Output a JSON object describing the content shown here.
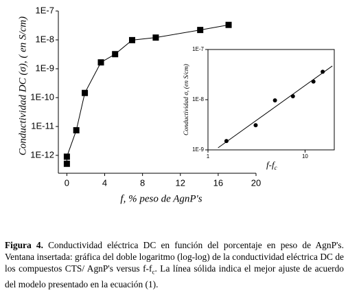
{
  "chart_data": [
    {
      "type": "line",
      "marker": "square",
      "color": "#000000",
      "x": [
        0,
        0,
        1.0,
        1.9,
        3.6,
        5.1,
        6.9,
        9.4,
        14.1,
        17.1
      ],
      "values": [
        5.1e-13,
        9e-13,
        7.4e-12,
        1.45e-10,
        1.66e-09,
        3.2e-09,
        9.8e-09,
        1.2e-08,
        2.2e-08,
        3.3e-08
      ],
      "xlim": [
        -0.9,
        20
      ],
      "xticks": [
        0,
        4,
        8,
        12,
        16,
        20
      ],
      "ylog": true,
      "ylim": [
        2.4e-13,
        1e-07
      ],
      "yticks": [
        {
          "value": 1e-12,
          "label": "1E-12"
        },
        {
          "value": 1e-11,
          "label": "1E-11"
        },
        {
          "value": 1e-10,
          "label": "1E-10"
        },
        {
          "value": 1e-09,
          "label": "1E-9"
        },
        {
          "value": 1e-08,
          "label": "1E-8"
        },
        {
          "value": 1e-07,
          "label": "1E-7"
        }
      ],
      "x_label": "f, % peso de AgnP's",
      "y_label": "Conductividad DC (σ), ( en S/cm)"
    },
    {
      "type": "scatter",
      "marker": "circle",
      "color": "#000000",
      "x": [
        1.55,
        3.1,
        4.9,
        7.5,
        12.2,
        15.2
      ],
      "values": [
        1.5e-09,
        3.1e-09,
        9.7e-09,
        1.17e-08,
        2.3e-08,
        3.6e-08
      ],
      "fit": {
        "x": [
          1.27,
          19.1
        ],
        "values": [
          1.1e-09,
          4.7e-08
        ]
      },
      "xlog": true,
      "xlim": [
        1,
        20
      ],
      "xticks": [
        1,
        10
      ],
      "ylog": true,
      "ylim": [
        1e-09,
        1e-07
      ],
      "yticks": [
        {
          "value": 1e-09,
          "label": "1E-9"
        },
        {
          "value": 1e-08,
          "label": "1E-8"
        },
        {
          "value": 1e-07,
          "label": "1E-7"
        }
      ],
      "x_label": "f-f",
      "x_label_subscript": "c",
      "y_label": "Conductividad σ, (en S/cm)"
    }
  ],
  "caption": {
    "label": "Figura 4.",
    "text": " Conductividad eléctrica DC en función del porcentaje en peso de AgnP's. Ventana insertada: gráfica del doble logaritmo (log-log) de la conductividad eléctrica DC de los compuestos CTS/ AgnP's versus  f-f",
    "subscript": "c",
    "tail": ". La línea sólida indica el mejor ajuste de acuerdo del modelo presentado en la ecuación (1)."
  }
}
